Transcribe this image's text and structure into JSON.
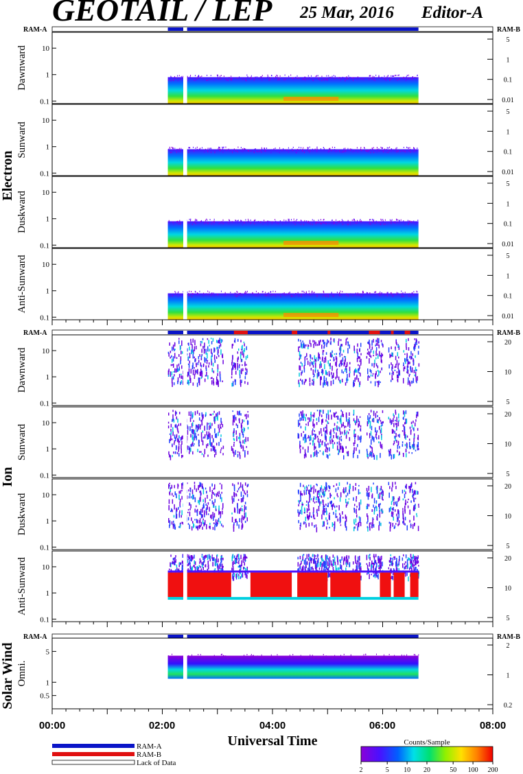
{
  "header": {
    "title": "GEOTAIL / LEP",
    "date": "25 Mar, 2016",
    "editor": "Editor-A"
  },
  "chart_data": [
    {
      "type": "heatmap",
      "group": "Electron",
      "ram_left": "RAM-A",
      "ram_right": "RAM-B",
      "panels": [
        {
          "label": "Dawnward",
          "y_ticks": [
            "10",
            "1",
            "0.1"
          ],
          "y_right_ticks": [
            "5",
            "1",
            "0.1",
            "0.01"
          ]
        },
        {
          "label": "Sunward",
          "y_ticks": [
            "10",
            "1",
            "0.1"
          ],
          "y_right_ticks": [
            "5",
            "1",
            "0.1",
            "0.01"
          ]
        },
        {
          "label": "Duskward",
          "y_ticks": [
            "10",
            "1",
            "0.1"
          ],
          "y_right_ticks": [
            "5",
            "1",
            "0.1",
            "0.01"
          ]
        },
        {
          "label": "Anti-Sunward",
          "y_ticks": [
            "10",
            "1",
            "0.1"
          ],
          "y_right_ticks": [
            "5",
            "1",
            "0.1",
            "0.01"
          ]
        }
      ],
      "data_coverage_hours": [
        2.1,
        6.65
      ],
      "data_gap_hours": [
        2.38,
        2.45
      ],
      "ylim": [
        0.08,
        40
      ]
    },
    {
      "type": "heatmap",
      "group": "Ion",
      "ram_left": "RAM-A",
      "ram_right": "RAM-B",
      "panels": [
        {
          "label": "Dawnward",
          "y_ticks": [
            "10",
            "1",
            "0.1"
          ],
          "y_right_ticks": [
            "20",
            "10",
            "5"
          ]
        },
        {
          "label": "Sunward",
          "y_ticks": [
            "10",
            "1",
            "0.1"
          ],
          "y_right_ticks": [
            "20",
            "10",
            "5"
          ]
        },
        {
          "label": "Duskward",
          "y_ticks": [
            "10",
            "1",
            "0.1"
          ],
          "y_right_ticks": [
            "20",
            "10",
            "5"
          ]
        },
        {
          "label": "Anti-Sunward",
          "y_ticks": [
            "10",
            "1",
            "0.1"
          ],
          "y_right_ticks": [
            "20",
            "10",
            "5"
          ]
        }
      ],
      "data_coverage_hours": [
        2.1,
        6.65
      ],
      "data_gap_hours": [
        2.38,
        2.45
      ],
      "ylim": [
        0.08,
        40
      ]
    },
    {
      "type": "heatmap",
      "group": "Solar Wind",
      "ram_left": "RAM-A",
      "ram_right": "RAM-B",
      "panels": [
        {
          "label": "Omni.",
          "y_ticks": [
            "5",
            "1",
            "0.5"
          ],
          "y_right_ticks": [
            "2",
            "1",
            "0.2"
          ]
        }
      ],
      "data_coverage_hours": [
        2.1,
        6.65
      ],
      "data_gap_hours": [
        2.38,
        2.45
      ],
      "ylim": [
        0.25,
        10
      ]
    }
  ],
  "x_axis": {
    "label": "Universal Time",
    "ticks": [
      "00:00",
      "02:00",
      "04:00",
      "06:00",
      "08:00"
    ],
    "range_hours": [
      0,
      8
    ]
  },
  "legend": {
    "items": [
      {
        "label": "RAM-A",
        "color": "#0a14c8"
      },
      {
        "label": "RAM-B",
        "color": "#e01010"
      },
      {
        "label": "Lack of Data",
        "color": "#ffffff"
      }
    ]
  },
  "colorbar": {
    "title": "Counts/Sample",
    "ticks": [
      "2",
      "5",
      "10",
      "20",
      "50",
      "100",
      "200"
    ],
    "range": [
      2,
      200
    ]
  },
  "colors": {
    "ram_bar": "#0a14c8",
    "ram_b_bar": "#e01010"
  }
}
